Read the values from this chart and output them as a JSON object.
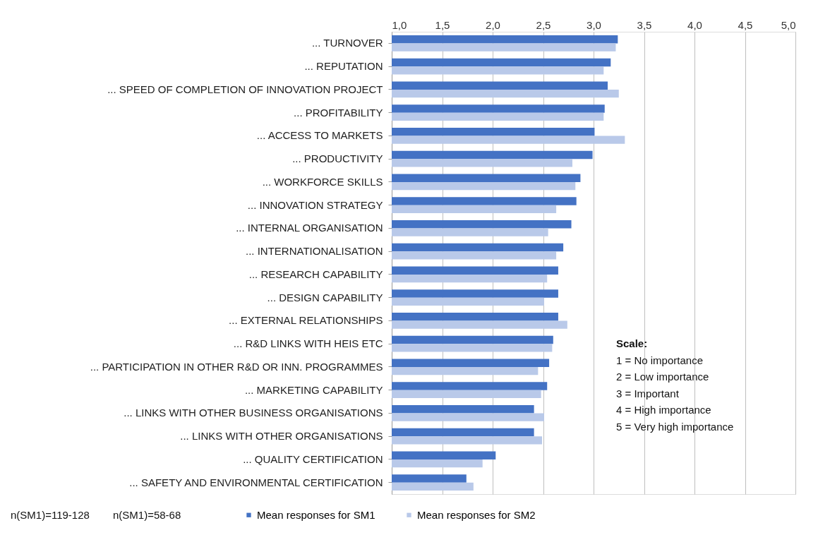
{
  "chart_data": {
    "type": "bar",
    "orientation": "horizontal",
    "categories": [
      "... TURNOVER",
      "... REPUTATION",
      "... SPEED OF COMPLETION OF INNOVATION PROJECT",
      "... PROFITABILITY",
      "... ACCESS TO MARKETS",
      "... PRODUCTIVITY",
      "... WORKFORCE SKILLS",
      "... INNOVATION STRATEGY",
      "... INTERNAL ORGANISATION",
      "... INTERNATIONALISATION",
      "... RESEARCH CAPABILITY",
      "... DESIGN CAPABILITY",
      "... EXTERNAL RELATIONSHIPS",
      "... R&D LINKS WITH HEIS ETC",
      "... PARTICIPATION IN OTHER R&D OR INN. PROGRAMMES",
      "... MARKETING CAPABILITY",
      "... LINKS WITH OTHER BUSINESS ORGANISATIONS",
      "... LINKS WITH OTHER ORGANISATIONS",
      "... QUALITY CERTIFICATION",
      "... SAFETY AND ENVIRONMENTAL CERTIFICATION"
    ],
    "series": [
      {
        "name": "Mean responses for SM1",
        "color": "#4472c4",
        "values": [
          3.24,
          3.17,
          3.14,
          3.11,
          3.01,
          2.99,
          2.87,
          2.83,
          2.78,
          2.7,
          2.65,
          2.65,
          2.65,
          2.6,
          2.56,
          2.54,
          2.41,
          2.41,
          2.03,
          1.74
        ]
      },
      {
        "name": "Mean responses for SM2",
        "color": "#b9c9e9",
        "values": [
          3.22,
          3.1,
          3.25,
          3.1,
          3.31,
          2.79,
          2.82,
          2.63,
          2.55,
          2.63,
          2.54,
          2.51,
          2.74,
          2.59,
          2.45,
          2.48,
          2.51,
          2.49,
          1.9,
          1.81
        ]
      }
    ],
    "xlim": [
      1.0,
      5.0
    ],
    "xticks": [
      {
        "value": 1.0,
        "label": "1,0"
      },
      {
        "value": 1.5,
        "label": "1,5"
      },
      {
        "value": 2.0,
        "label": "2,0"
      },
      {
        "value": 2.5,
        "label": "2,5"
      },
      {
        "value": 3.0,
        "label": "3,0"
      },
      {
        "value": 3.5,
        "label": "3,5"
      },
      {
        "value": 4.0,
        "label": "4,0"
      },
      {
        "value": 4.5,
        "label": "4,5"
      },
      {
        "value": 5.0,
        "label": "5,0"
      }
    ],
    "grid": "x",
    "legend": "bottom",
    "annotations": [
      "n(SM1)=119-128",
      "n(SM1)=58-68",
      "Scale:",
      "1 = No importance",
      "2 = Low importance",
      "3 = Important",
      "4 = High importance",
      "5 = Very high importance"
    ]
  }
}
